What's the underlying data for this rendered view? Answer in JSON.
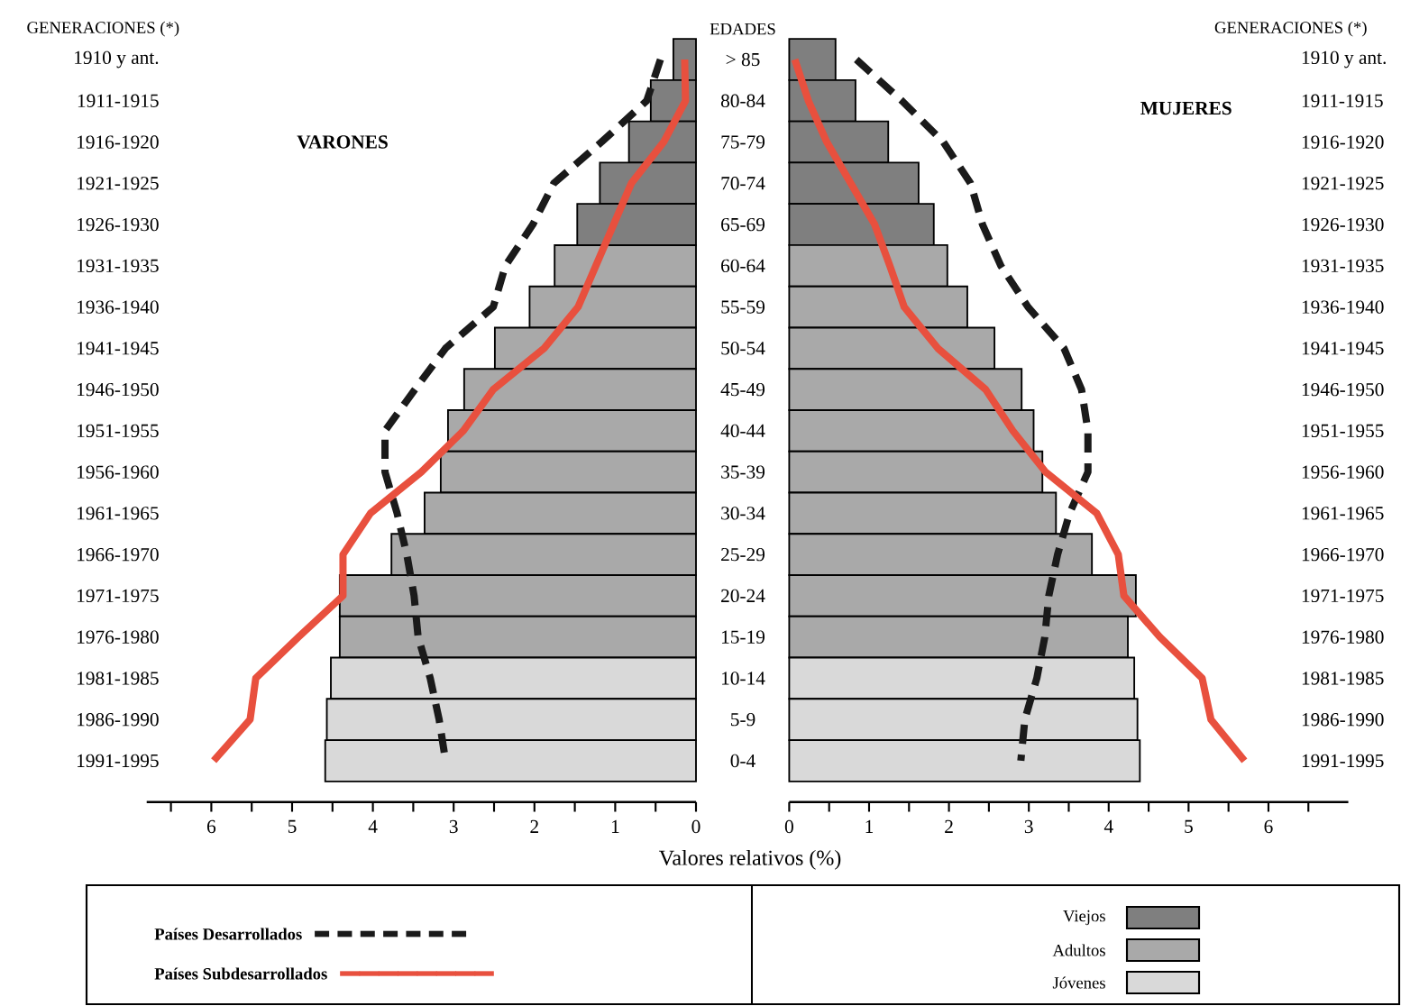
{
  "chart_data": [
    {
      "type": "bar",
      "orientation": "horizontal",
      "title": "VARONES",
      "ylabel": "GENERACIONES (*)",
      "xlabel": "Valores relativos (%)",
      "legend": "bottom",
      "categories": [
        "1910 y ant.",
        "1911-1915",
        "1916-1920",
        "1921-1925",
        "1926-1930",
        "1931-1935",
        "1936-1940",
        "1941-1945",
        "1946-1950",
        "1951-1955",
        "1956-1960",
        "1961-1965",
        "1966-1970",
        "1971-1975",
        "1976-1980",
        "1981-1985",
        "1986-1990",
        "1991-1995"
      ],
      "xlim": [
        6.8,
        0
      ],
      "xticks": [
        {
          "value": 6.5,
          "label": null
        },
        6,
        {
          "value": 5.5,
          "label": null
        },
        5,
        {
          "value": 4.5,
          "label": null
        },
        4,
        {
          "value": 3.5,
          "label": null
        },
        3,
        {
          "value": 2.5,
          "label": null
        },
        2,
        {
          "value": 1.5,
          "label": null
        },
        1,
        {
          "value": 0.5,
          "label": null
        },
        0
      ],
      "series": [
        {
          "name": "Viejos",
          "color": "#7f7f7f",
          "values": [
            0.28,
            0.56,
            0.83,
            1.19,
            1.47,
            null,
            null,
            null,
            null,
            null,
            null,
            null,
            null,
            null,
            null,
            null,
            null,
            null
          ]
        },
        {
          "name": "Adultos",
          "color": "#a9a9a9",
          "values": [
            null,
            null,
            null,
            null,
            null,
            1.75,
            2.06,
            2.49,
            2.87,
            3.07,
            3.16,
            3.36,
            3.77,
            4.41,
            4.41,
            null,
            null,
            null
          ]
        },
        {
          "name": "Jóvenes",
          "color": "#d9d9d9",
          "values": [
            null,
            null,
            null,
            null,
            null,
            null,
            null,
            null,
            null,
            null,
            null,
            null,
            null,
            null,
            null,
            4.52,
            4.57,
            4.59
          ]
        },
        {
          "name": "Países Desarrollados",
          "type": "line",
          "line_style": "dashed",
          "color": "#1a1a1a",
          "values": [
            0.44,
            0.61,
            1.17,
            1.76,
            2.02,
            2.36,
            2.51,
            3.1,
            3.48,
            3.85,
            3.85,
            3.7,
            3.58,
            3.49,
            3.44,
            3.29,
            3.18,
            3.1
          ]
        },
        {
          "name": "Países Subdesarrollados",
          "type": "line",
          "line_style": "solid",
          "color": "#e8503e",
          "values": [
            0.14,
            0.13,
            0.4,
            0.8,
            1.02,
            1.24,
            1.46,
            1.88,
            2.51,
            2.88,
            3.4,
            4.03,
            4.37,
            4.37,
            4.92,
            5.45,
            5.52,
            5.97
          ]
        }
      ]
    },
    {
      "type": "bar",
      "orientation": "horizontal",
      "title": "MUJERES",
      "ylabel": "EDADES",
      "y2label": "GENERACIONES (*)",
      "categories": [
        "> 85",
        "80-84",
        "75-79",
        "70-74",
        "65-69",
        "60-64",
        "55-59",
        "50-54",
        "45-49",
        "40-44",
        "35-39",
        "30-34",
        "25-29",
        "20-24",
        "15-19",
        "10-14",
        "5-9",
        "0-4"
      ],
      "y2_categories": [
        "1910 y ant.",
        "1911-1915",
        "1916-1920",
        "1921-1925",
        "1926-1930",
        "1931-1935",
        "1936-1940",
        "1941-1945",
        "1946-1950",
        "1951-1955",
        "1956-1960",
        "1961-1965",
        "1966-1970",
        "1971-1975",
        "1976-1980",
        "1981-1985",
        "1986-1990",
        "1991-1995"
      ],
      "xlim": [
        0,
        7
      ],
      "xticks": [
        0,
        {
          "value": 0.5,
          "label": null
        },
        1,
        {
          "value": 1.5,
          "label": null
        },
        2,
        {
          "value": 2.5,
          "label": null
        },
        3,
        {
          "value": 3.5,
          "label": null
        },
        4,
        {
          "value": 4.5,
          "label": null
        },
        5,
        {
          "value": 5.5,
          "label": null
        },
        6,
        {
          "value": 6.5,
          "label": null
        }
      ],
      "series": [
        {
          "color": "#7f7f7f",
          "values": [
            0.58,
            0.83,
            1.24,
            1.62,
            1.81,
            null,
            null,
            null,
            null,
            null,
            null,
            null,
            null,
            null,
            null,
            null,
            null,
            null
          ]
        },
        {
          "color": "#a9a9a9",
          "values": [
            null,
            null,
            null,
            null,
            null,
            1.98,
            2.23,
            2.57,
            2.91,
            3.06,
            3.17,
            3.34,
            3.79,
            4.34,
            4.24,
            null,
            null,
            null
          ]
        },
        {
          "color": "#d9d9d9",
          "values": [
            null,
            null,
            null,
            null,
            null,
            null,
            null,
            null,
            null,
            null,
            null,
            null,
            null,
            null,
            null,
            4.32,
            4.36,
            4.39
          ]
        },
        {
          "type": "line",
          "line_style": "dashed",
          "color": "#1a1a1a",
          "values": [
            0.84,
            1.41,
            1.93,
            2.27,
            2.42,
            2.65,
            2.99,
            3.44,
            3.66,
            3.74,
            3.74,
            3.51,
            3.36,
            3.25,
            3.2,
            3.1,
            2.95,
            2.9
          ]
        },
        {
          "type": "line",
          "line_style": "solid",
          "color": "#e8503e",
          "values": [
            0.07,
            0.24,
            0.47,
            0.77,
            1.07,
            1.26,
            1.44,
            1.86,
            2.46,
            2.8,
            3.21,
            3.85,
            4.12,
            4.19,
            4.64,
            5.17,
            5.28,
            5.7
          ]
        }
      ]
    }
  ]
}
